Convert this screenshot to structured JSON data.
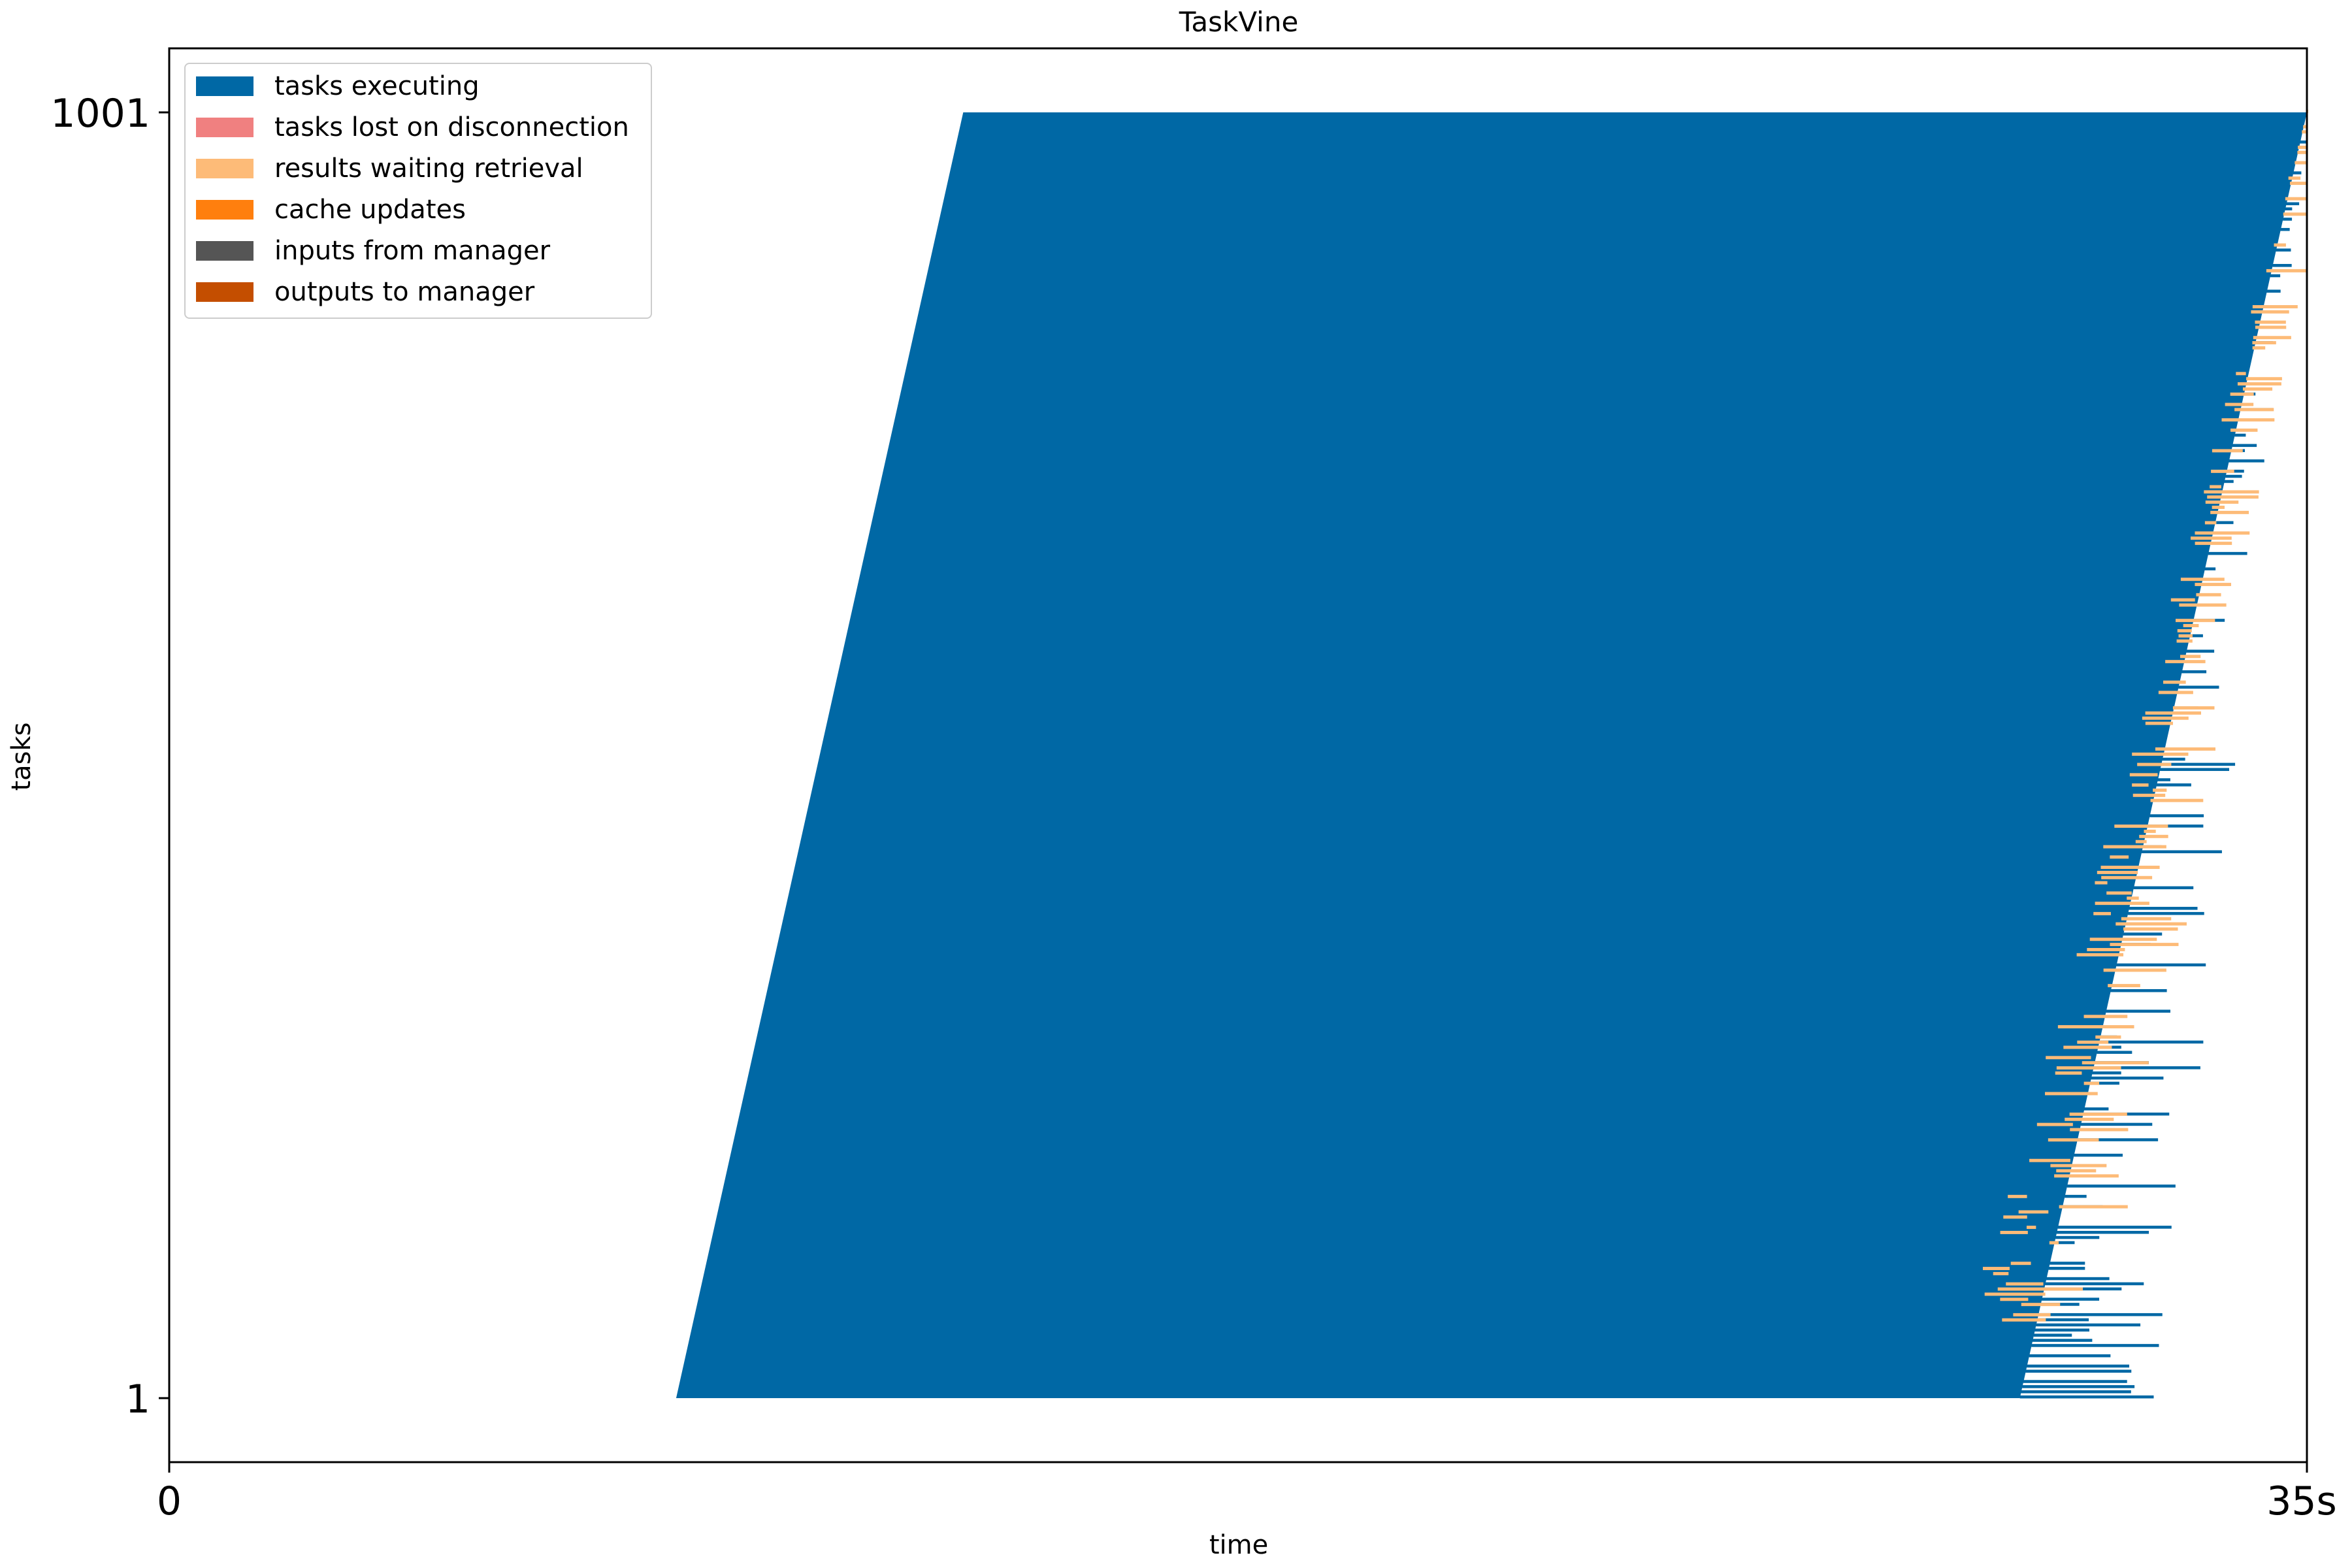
{
  "chart_data": {
    "type": "gantt",
    "title": "TaskVine",
    "xlabel": "time",
    "ylabel": "tasks",
    "xlim": [
      0,
      35
    ],
    "ylim": [
      1,
      1001
    ],
    "xticks": [
      "0",
      "35s"
    ],
    "yticks": [
      "1",
      "1001"
    ],
    "legend_position": "top-left",
    "grid": false,
    "series": [
      {
        "name": "tasks executing",
        "color": "#0068a5"
      },
      {
        "name": "tasks lost on disconnection",
        "color": "#f08080"
      },
      {
        "name": "results waiting retrieval",
        "color": "#fdbb78"
      },
      {
        "name": "cache updates",
        "color": "#ff7f0e"
      },
      {
        "name": "inputs from manager",
        "color": "#555555"
      },
      {
        "name": "outputs to manager",
        "color": "#c44e00"
      }
    ],
    "executing_region": {
      "start_at_task_1": 8.3,
      "start_at_task_1001": 13.0,
      "end_at_task_1": 30.3,
      "end_at_task_1001": 35.0
    }
  }
}
